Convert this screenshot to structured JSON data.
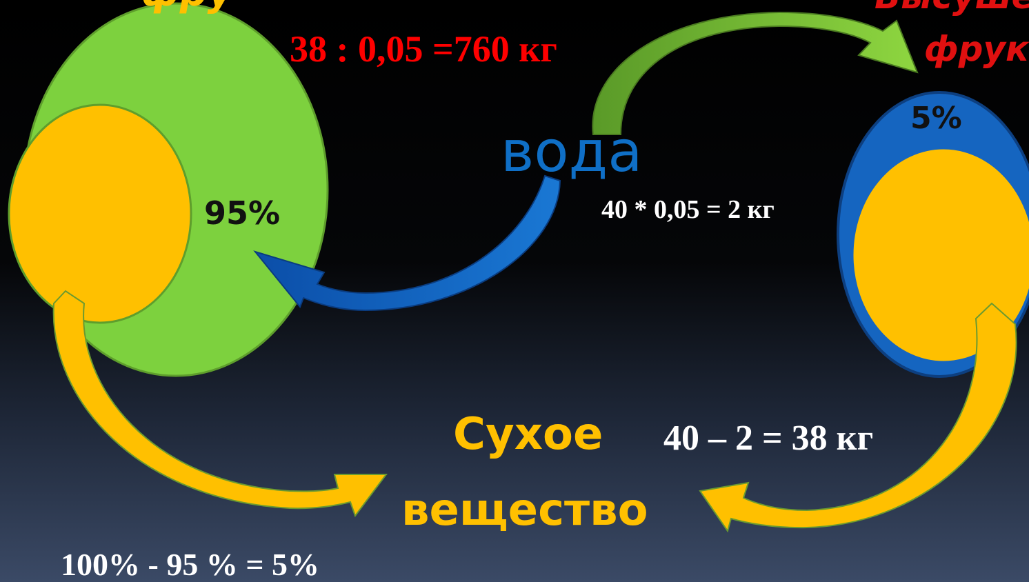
{
  "labels": {
    "top_left": "фру",
    "top_right_1": "Высуше",
    "top_right_2": "фрукт",
    "red_formula": "38 : 0,05 =760 кг",
    "water": "вода",
    "left_percent": "95%",
    "right_percent": "5%",
    "water_formula": "40 * 0,05 = 2 кг",
    "dry_1": "Сухое",
    "dry_2": "вещество",
    "dry_formula": "40 – 2 = 38 кг",
    "percent_formula": "100% - 95 % = 5%"
  }
}
